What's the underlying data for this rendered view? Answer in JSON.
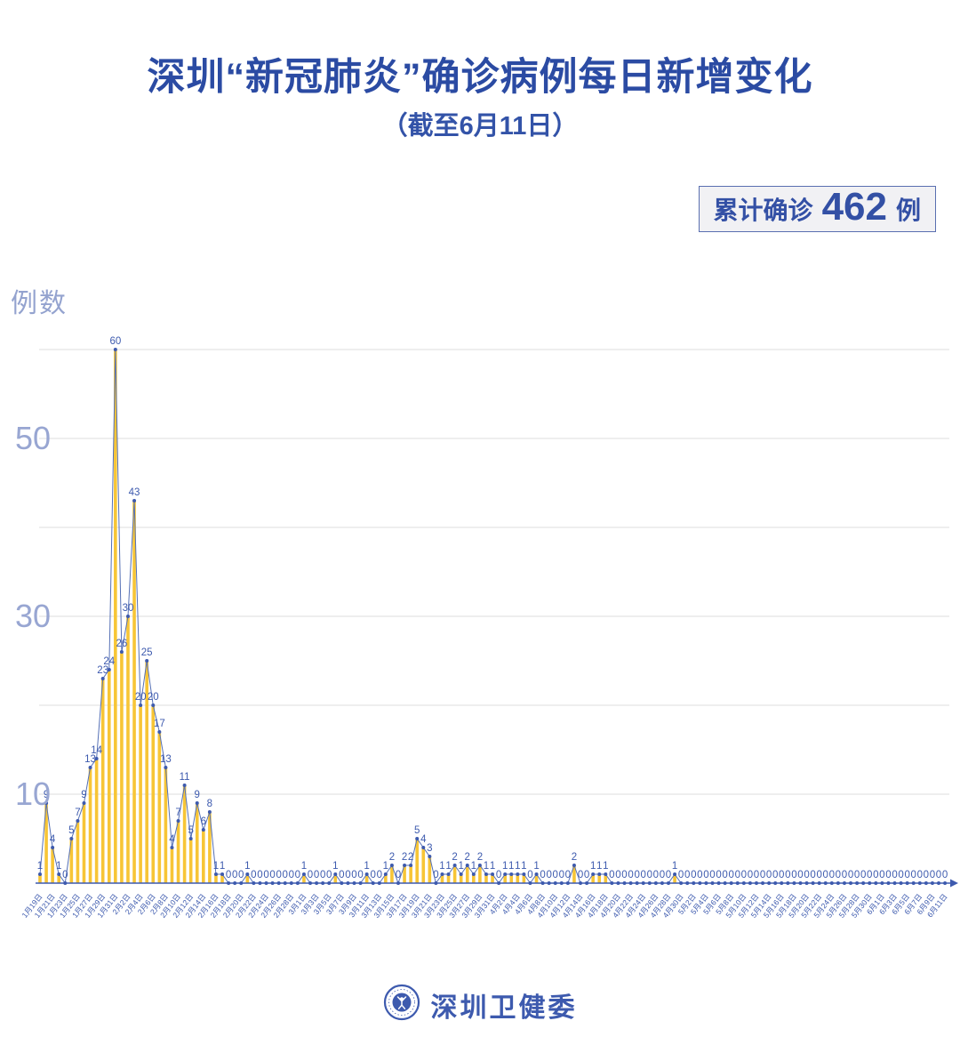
{
  "header": {
    "title": "深圳“新冠肺炎”确诊病例每日新增变化",
    "subtitle": "（截至6月11日）",
    "badge": {
      "label": "累计确诊",
      "value": "462",
      "unit": "例"
    }
  },
  "footer": {
    "org": "深圳卫健委",
    "logo": "shenzhen-health-commission-emblem"
  },
  "chart_data": {
    "type": "bar",
    "title": "深圳“新冠肺炎”确诊病例每日新增变化",
    "subtitle": "（截至6月11日）",
    "ylabel": "例数",
    "xlabel": "",
    "ylim": [
      0,
      62
    ],
    "y_ticks_labeled": [
      10,
      30,
      50
    ],
    "gridlines_at": [
      10,
      20,
      30,
      40,
      50,
      60
    ],
    "legend": "none",
    "total_label": "累计确诊 462 例",
    "x_labels_every": 2,
    "x_labels": [
      "1月19日",
      "1月21日",
      "1月23日",
      "1月25日",
      "1月27日",
      "1月29日",
      "1月31日",
      "2月2日",
      "2月4日",
      "2月6日",
      "2月8日",
      "2月10日",
      "2月12日",
      "2月14日",
      "2月16日",
      "2月18日",
      "2月20日",
      "2月22日",
      "2月24日",
      "2月26日",
      "2月28日",
      "3月1日",
      "3月3日",
      "3月5日",
      "3月7日",
      "3月9日",
      "3月11日",
      "3月13日",
      "3月15日",
      "3月17日",
      "3月19日",
      "3月21日",
      "3月23日",
      "3月25日",
      "3月27日",
      "3月29日",
      "3月31日",
      "4月2日",
      "4月4日",
      "4月6日",
      "4月8日",
      "4月10日",
      "4月12日",
      "4月14日",
      "4月16日",
      "4月18日",
      "4月20日",
      "4月22日",
      "4月24日",
      "4月26日",
      "4月28日",
      "4月30日",
      "5月2日",
      "5月4日",
      "5月6日",
      "5月8日",
      "5月10日",
      "5月12日",
      "5月14日",
      "5月16日",
      "5月18日",
      "5月20日",
      "5月22日",
      "5月24日",
      "5月26日",
      "5月28日",
      "5月30日",
      "6月1日",
      "6月3日",
      "6月5日",
      "6月7日",
      "6月9日",
      "6月11日"
    ],
    "values": [
      1,
      9,
      4,
      1,
      0,
      5,
      7,
      9,
      13,
      14,
      23,
      24,
      60,
      26,
      30,
      43,
      20,
      25,
      20,
      17,
      13,
      4,
      7,
      11,
      5,
      9,
      6,
      8,
      1,
      1,
      0,
      0,
      0,
      1,
      0,
      0,
      0,
      0,
      0,
      0,
      0,
      0,
      1,
      0,
      0,
      0,
      0,
      1,
      0,
      0,
      0,
      0,
      1,
      0,
      0,
      1,
      2,
      0,
      2,
      2,
      5,
      4,
      3,
      0,
      1,
      1,
      2,
      1,
      2,
      1,
      2,
      1,
      1,
      0,
      1,
      1,
      1,
      1,
      0,
      1,
      0,
      0,
      0,
      0,
      0,
      2,
      0,
      0,
      1,
      1,
      1,
      0,
      0,
      0,
      0,
      0,
      0,
      0,
      0,
      0,
      0,
      1,
      0,
      0,
      0,
      0,
      0,
      0,
      0,
      0,
      0,
      0,
      0,
      0,
      0,
      0,
      0,
      0,
      0,
      0,
      0,
      0,
      0,
      0,
      0,
      0,
      0,
      0,
      0,
      0,
      0,
      0,
      0,
      0,
      0,
      0,
      0,
      0,
      0,
      0,
      0,
      0,
      0,
      0,
      0
    ],
    "colors": {
      "bar": "#F7C536",
      "line": "#5570B5",
      "marker": "#3D5AAE",
      "value_label": "#3D5AAE",
      "axis": "#3D5AAE",
      "grid": "#DCDCDC",
      "tick_label": "#98A6D2",
      "title": "#2B4BA3"
    }
  }
}
